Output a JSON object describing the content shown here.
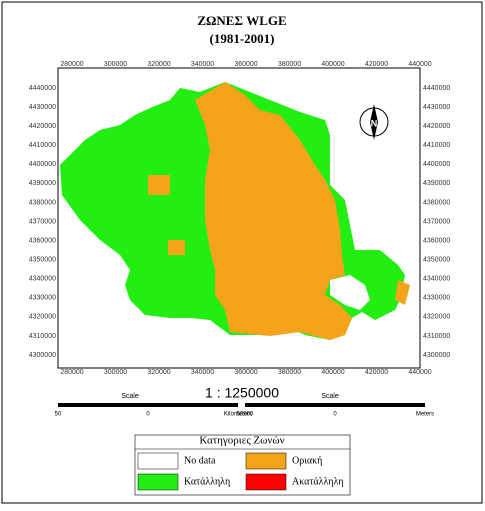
{
  "title": "ΖΩΝΕΣ WLGE",
  "subtitle": "(1981-2001)",
  "x_labels": [
    "280000",
    "300000",
    "320000",
    "340000",
    "360000",
    "380000",
    "400000",
    "420000",
    "440000"
  ],
  "y_labels": [
    "4440000",
    "4430000",
    "4420000",
    "4410000",
    "4400000",
    "4390000",
    "4380000",
    "4370000",
    "4360000",
    "4350000",
    "4340000",
    "4330000",
    "4320000",
    "4310000",
    "4300000"
  ],
  "north": "N",
  "scale": {
    "left_title": "Scale",
    "ratio": "1 : 1250000",
    "right_title": "Scale",
    "left_bar": [
      "50",
      "0",
      "Kilometers"
    ],
    "right_bar": [
      "50000",
      "0",
      "Meters"
    ]
  },
  "legend": {
    "title": "Κατηγοριες Ζωνών",
    "items": [
      {
        "label": "No data",
        "color": "#ffffff"
      },
      {
        "label": "Οριακή",
        "color": "#f5a31a"
      },
      {
        "label": "Κατάλληλη",
        "color": "#22ee11"
      },
      {
        "label": "Ακατάλληλη",
        "color": "#ff0000"
      }
    ]
  }
}
